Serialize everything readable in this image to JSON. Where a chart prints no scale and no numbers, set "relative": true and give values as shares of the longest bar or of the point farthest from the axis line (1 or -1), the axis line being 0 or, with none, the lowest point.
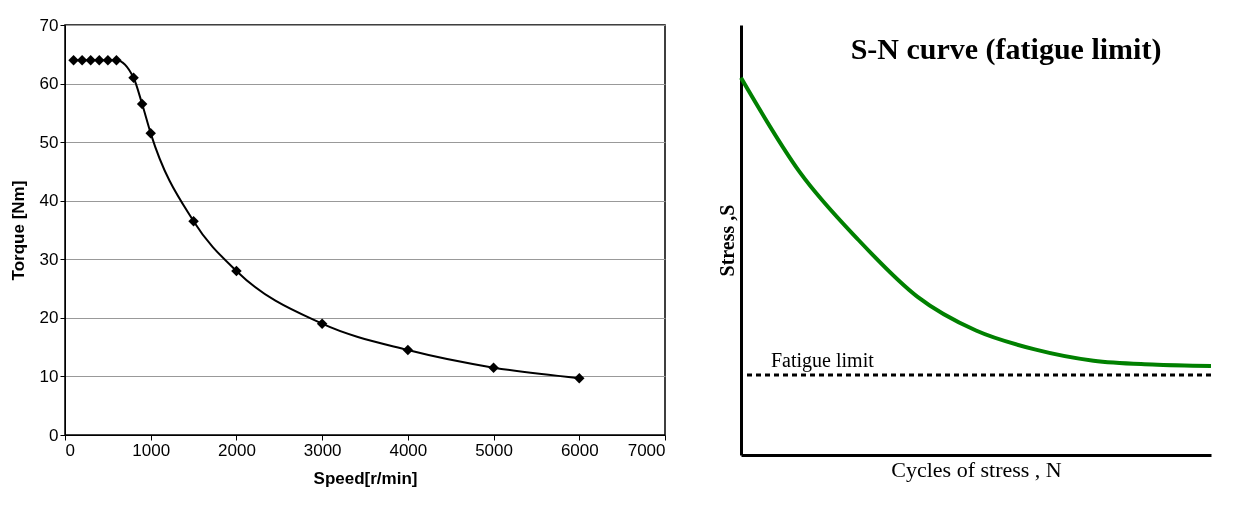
{
  "chart_data": [
    {
      "type": "line",
      "xlabel": "Speed[r/min]",
      "ylabel": "Torque [Nm]",
      "x": [
        100,
        200,
        300,
        400,
        500,
        600,
        800,
        900,
        1000,
        1500,
        2000,
        3000,
        4000,
        5000,
        6000
      ],
      "series": [
        {
          "color": "#000000",
          "values": [
            64,
            64,
            64,
            64,
            64,
            64,
            61,
            56.5,
            51.5,
            36.5,
            28,
            19,
            14.5,
            11.5,
            9.7
          ]
        }
      ],
      "xlim": [
        0,
        7000
      ],
      "xticks": [
        0,
        1000,
        2000,
        3000,
        4000,
        5000,
        6000,
        7000
      ],
      "ylim": [
        0,
        70
      ],
      "yticks": [
        0,
        10,
        20,
        30,
        40,
        50,
        60,
        70
      ],
      "grid": "y",
      "marker": "diamond",
      "line_style": "solid"
    },
    {
      "type": "line",
      "title": "S-N curve (fatigue limit)",
      "xlabel": "Cycles of stress , N",
      "ylabel": "Stress ,S",
      "relative": true,
      "categories": [
        null,
        null,
        null,
        null,
        null,
        null,
        null,
        null,
        null
      ],
      "series": [
        {
          "color": "#008000",
          "values": [
            1,
            0.75,
            0.57,
            0.42,
            0.33,
            0.28,
            0.25,
            0.24,
            0.236
          ]
        }
      ],
      "ref_lines": [
        {
          "axis": "y",
          "value": 0.212,
          "label": "Fatigue limit",
          "color": "#000000",
          "line_style": "dashed"
        }
      ],
      "tick_labels": false,
      "marker": "none",
      "line_style": "solid",
      "grid": false
    }
  ]
}
